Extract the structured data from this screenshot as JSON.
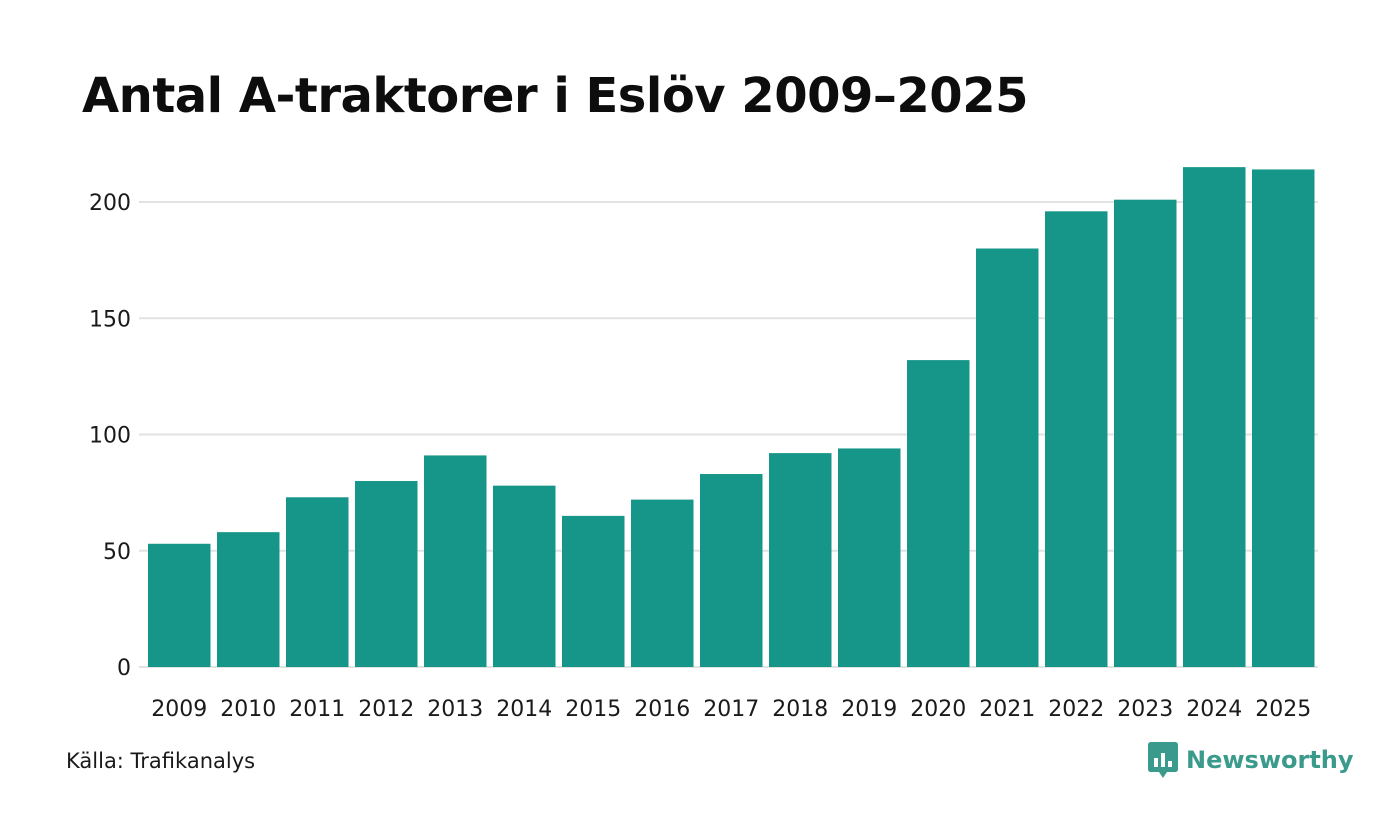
{
  "colors": {
    "bar": "#169688",
    "grid": "#e2e2e2",
    "brand": "#3a9a8c",
    "text": "#1a1a1a"
  },
  "brand": {
    "name": "Newsworthy",
    "icon": "newsworthy-logo-icon"
  },
  "source": "Källa: Trafikanalys",
  "chart_data": {
    "type": "bar",
    "title": "Antal A-traktorer i Eslöv 2009–2025",
    "xlabel": "",
    "ylabel": "",
    "categories": [
      "2009",
      "2010",
      "2011",
      "2012",
      "2013",
      "2014",
      "2015",
      "2016",
      "2017",
      "2018",
      "2019",
      "2020",
      "2021",
      "2022",
      "2023",
      "2024",
      "2025"
    ],
    "values": [
      53,
      58,
      73,
      80,
      91,
      78,
      65,
      72,
      83,
      92,
      94,
      132,
      180,
      196,
      201,
      215,
      214
    ],
    "ylim": [
      0,
      220
    ],
    "yticks": [
      0,
      50,
      100,
      150,
      200
    ],
    "grid": true,
    "legend": "none"
  }
}
